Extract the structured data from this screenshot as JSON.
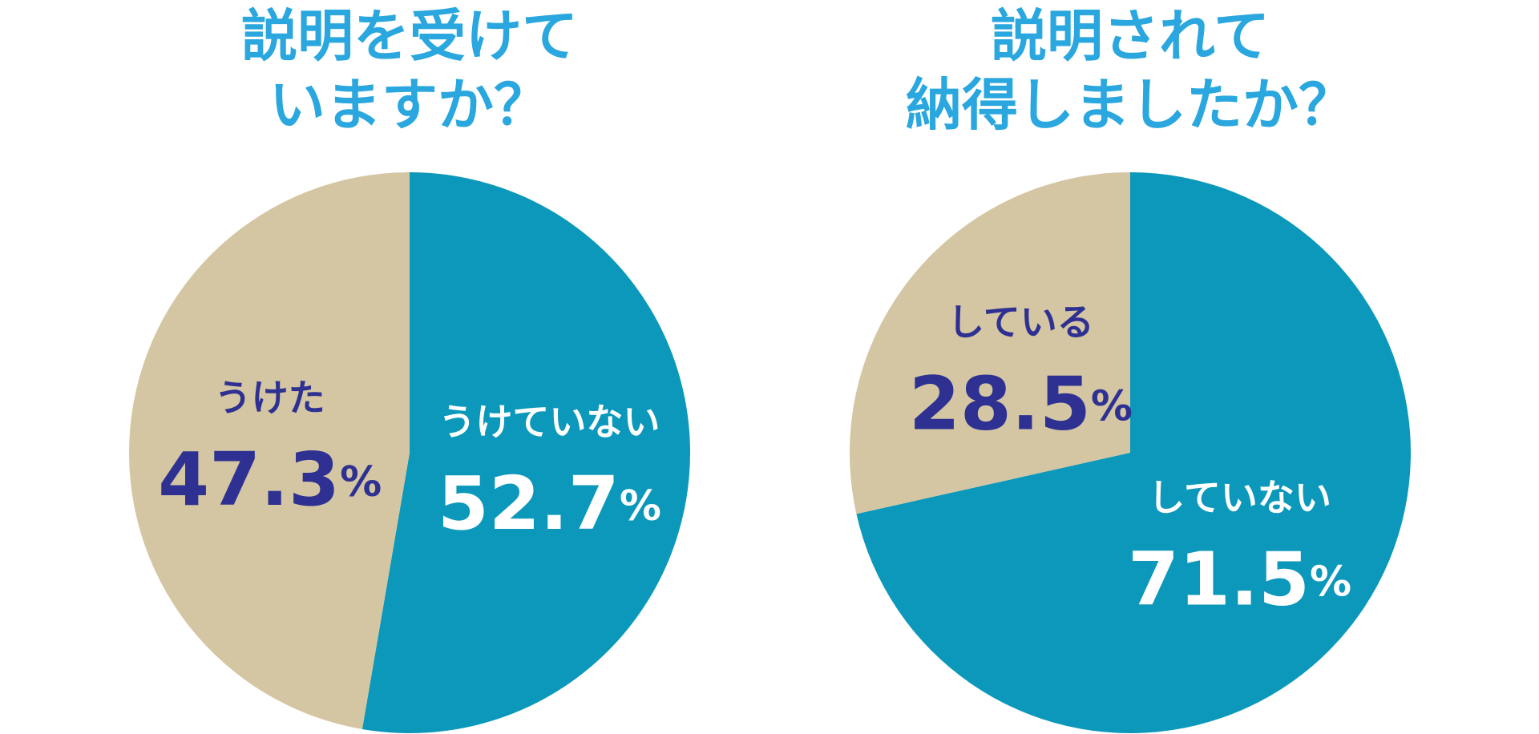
{
  "chart_data": [
    {
      "type": "pie",
      "title": [
        "説明を受けて",
        "いますか？"
      ],
      "categories": [
        "うけていない",
        "うけた"
      ],
      "values": [
        52.7,
        47.3
      ],
      "value_labels": [
        "52.7%",
        "47.3%"
      ],
      "colors": [
        "#0b98bb",
        "#d4c6a3"
      ],
      "label_colors": [
        "#ffffff",
        "#2e3192"
      ]
    },
    {
      "type": "pie",
      "title": [
        "説明されて",
        "納得しましたか？"
      ],
      "categories": [
        "していない",
        "している"
      ],
      "values": [
        71.5,
        28.5
      ],
      "value_labels": [
        "71.5%",
        "28.5%"
      ],
      "colors": [
        "#0b98bb",
        "#d4c6a3"
      ],
      "label_colors": [
        "#ffffff",
        "#2e3192"
      ]
    }
  ]
}
